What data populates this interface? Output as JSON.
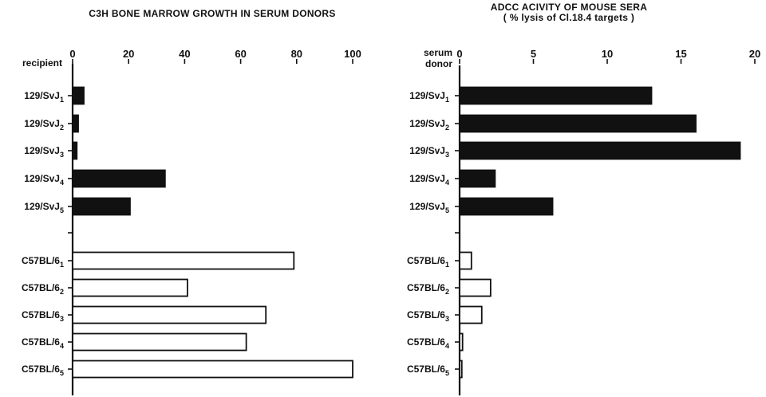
{
  "chart_data": [
    {
      "type": "bar",
      "orientation": "horizontal",
      "title": "C3H BONE MARROW GROWTH IN SERUM DONORS",
      "subtitle": "",
      "axis_corner_label": [
        "recipient"
      ],
      "xlim": [
        0,
        100
      ],
      "xticks": [
        0,
        20,
        40,
        60,
        80,
        100
      ],
      "categories": [
        {
          "base": "129/SvJ",
          "sub": "1"
        },
        {
          "base": "129/SvJ",
          "sub": "2"
        },
        {
          "base": "129/SvJ",
          "sub": "3"
        },
        {
          "base": "129/SvJ",
          "sub": "4"
        },
        {
          "base": "129/SvJ",
          "sub": "5"
        },
        {
          "base": "C57BL/6",
          "sub": "1"
        },
        {
          "base": "C57BL/6",
          "sub": "2"
        },
        {
          "base": "C57BL/6",
          "sub": "3"
        },
        {
          "base": "C57BL/6",
          "sub": "4"
        },
        {
          "base": "C57BL/6",
          "sub": "5"
        }
      ],
      "values": [
        4,
        2,
        1.5,
        33,
        20.5,
        79,
        41,
        69,
        62,
        100
      ],
      "fill": [
        "black",
        "black",
        "black",
        "black",
        "black",
        "white",
        "white",
        "white",
        "white",
        "white"
      ],
      "grid": false
    },
    {
      "type": "bar",
      "orientation": "horizontal",
      "title": "ADCC ACIVITY OF MOUSE SERA",
      "subtitle": "( % lysis of Cl.18.4 targets )",
      "axis_corner_label": [
        "serum",
        "donor"
      ],
      "xlim": [
        0,
        20
      ],
      "xticks": [
        0,
        5,
        10,
        15,
        20
      ],
      "categories": [
        {
          "base": "129/SvJ",
          "sub": "1"
        },
        {
          "base": "129/SvJ",
          "sub": "2"
        },
        {
          "base": "129/SvJ",
          "sub": "3"
        },
        {
          "base": "129/SvJ",
          "sub": "4"
        },
        {
          "base": "129/SvJ",
          "sub": "5"
        },
        {
          "base": "C57BL/6",
          "sub": "1"
        },
        {
          "base": "C57BL/6",
          "sub": "2"
        },
        {
          "base": "C57BL/6",
          "sub": "3"
        },
        {
          "base": "C57BL/6",
          "sub": "4"
        },
        {
          "base": "C57BL/6",
          "sub": "5"
        }
      ],
      "values": [
        13,
        16,
        19,
        2.4,
        6.3,
        0.8,
        2.1,
        1.5,
        0.2,
        0.15
      ],
      "fill": [
        "black",
        "black",
        "black",
        "black",
        "black",
        "white",
        "white",
        "white",
        "white",
        "white"
      ],
      "grid": false
    }
  ]
}
